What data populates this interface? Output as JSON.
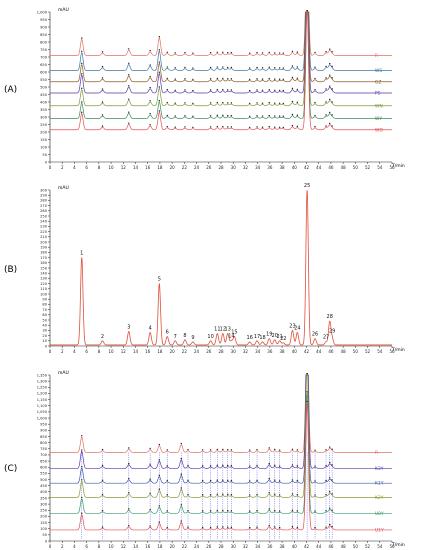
{
  "chart_data": [
    {
      "type": "line",
      "panel_label": "(A)",
      "y_unit": "mAU",
      "x_unit": "T/min",
      "xlim": [
        0,
        56
      ],
      "ylim": [
        0,
        1000
      ],
      "x_ticks": [
        0,
        2,
        4,
        6,
        8,
        10,
        12,
        14,
        16,
        18,
        20,
        22,
        24,
        26,
        28,
        30,
        32,
        34,
        36,
        38,
        40,
        42,
        44,
        46,
        48,
        50,
        52,
        54,
        56
      ],
      "y_ticks": [
        0,
        50,
        100,
        150,
        200,
        250,
        300,
        350,
        400,
        450,
        500,
        550,
        600,
        650,
        700,
        750,
        800,
        850,
        900,
        950,
        1000
      ],
      "trace_offsets": [
        710,
        610,
        535,
        460,
        375,
        290,
        215
      ],
      "series": [
        {
          "name": "R",
          "color": "#e07060",
          "peak_scale": 0.9
        },
        {
          "name": "WS",
          "color": "#3a78a8",
          "peak_scale": 1.0
        },
        {
          "name": "GZ",
          "color": "#8a5a2a",
          "peak_scale": 0.95
        },
        {
          "name": "PS",
          "color": "#5a3aa8",
          "peak_scale": 1.0
        },
        {
          "name": "WN",
          "color": "#7a9a3a",
          "peak_scale": 0.9
        },
        {
          "name": "WY",
          "color": "#3a8a5a",
          "peak_scale": 0.85
        },
        {
          "name": "WD",
          "color": "#e05050",
          "peak_scale": 0.9
        }
      ],
      "peaks": [
        {
          "t": 5.2,
          "h": 120
        },
        {
          "t": 8.6,
          "h": 18
        },
        {
          "t": 12.9,
          "h": 40
        },
        {
          "t": 16.4,
          "h": 28
        },
        {
          "t": 17.9,
          "h": 130
        },
        {
          "t": 19.2,
          "h": 15
        },
        {
          "t": 20.5,
          "h": 10
        },
        {
          "t": 22.1,
          "h": 12
        },
        {
          "t": 23.4,
          "h": 8
        },
        {
          "t": 26.3,
          "h": 12
        },
        {
          "t": 27.4,
          "h": 15
        },
        {
          "t": 28.3,
          "h": 15
        },
        {
          "t": 29.1,
          "h": 12
        },
        {
          "t": 29.7,
          "h": 12
        },
        {
          "t": 32.7,
          "h": 8
        },
        {
          "t": 33.9,
          "h": 12
        },
        {
          "t": 34.8,
          "h": 10
        },
        {
          "t": 35.9,
          "h": 14
        },
        {
          "t": 36.8,
          "h": 10
        },
        {
          "t": 37.6,
          "h": 9
        },
        {
          "t": 38.2,
          "h": 8
        },
        {
          "t": 39.7,
          "h": 22
        },
        {
          "t": 40.5,
          "h": 16
        },
        {
          "t": 42.1,
          "h": 900
        },
        {
          "t": 43.4,
          "h": 14
        },
        {
          "t": 45.2,
          "h": 18
        },
        {
          "t": 45.8,
          "h": 35
        },
        {
          "t": 46.2,
          "h": 12
        }
      ],
      "marker_positions": [
        5.2,
        8.6,
        12.9,
        16.4,
        17.9,
        19.2,
        20.5,
        22.1,
        23.4,
        26.3,
        27.4,
        28.3,
        29.1,
        29.7,
        32.7,
        33.9,
        34.8,
        35.9,
        36.8,
        37.6,
        38.2,
        39.7,
        40.5,
        42.1,
        43.4,
        45.2,
        45.8,
        46.2
      ]
    },
    {
      "type": "line",
      "panel_label": "(B)",
      "y_unit": "mAU",
      "x_unit": "T/min",
      "xlim": [
        0,
        56
      ],
      "ylim": [
        0,
        300
      ],
      "x_ticks": [
        0,
        2,
        4,
        6,
        8,
        10,
        12,
        14,
        16,
        18,
        20,
        22,
        24,
        26,
        28,
        30,
        32,
        34,
        36,
        38,
        40,
        42,
        44,
        46,
        48,
        50,
        52,
        54,
        56
      ],
      "y_ticks": [
        0,
        10,
        20,
        30,
        40,
        50,
        60,
        70,
        80,
        90,
        100,
        110,
        120,
        130,
        140,
        150,
        160,
        170,
        180,
        190,
        200,
        210,
        220,
        230,
        240,
        250,
        260,
        270,
        280,
        290,
        300
      ],
      "series": [
        {
          "name": "",
          "color": "#e0503a"
        }
      ],
      "peaks": [
        {
          "label": "1",
          "t": 5.2,
          "h": 168
        },
        {
          "label": "2",
          "t": 8.6,
          "h": 8
        },
        {
          "label": "3",
          "t": 12.9,
          "h": 26
        },
        {
          "label": "4",
          "t": 16.4,
          "h": 24
        },
        {
          "label": "5",
          "t": 17.9,
          "h": 118
        },
        {
          "label": "6",
          "t": 19.2,
          "h": 16
        },
        {
          "label": "7",
          "t": 20.5,
          "h": 8
        },
        {
          "label": "8",
          "t": 22.1,
          "h": 10
        },
        {
          "label": "9",
          "t": 23.4,
          "h": 6
        },
        {
          "label": "10",
          "t": 26.3,
          "h": 8
        },
        {
          "label": "11",
          "t": 27.4,
          "h": 22
        },
        {
          "label": "12",
          "t": 28.3,
          "h": 22
        },
        {
          "label": "13",
          "t": 29.1,
          "h": 22
        },
        {
          "label": "14",
          "t": 29.7,
          "h": 8
        },
        {
          "label": "15",
          "t": 30.2,
          "h": 16
        },
        {
          "label": "16",
          "t": 32.7,
          "h": 6
        },
        {
          "label": "17",
          "t": 33.9,
          "h": 8
        },
        {
          "label": "18",
          "t": 34.8,
          "h": 6
        },
        {
          "label": "19",
          "t": 35.9,
          "h": 12
        },
        {
          "label": "20",
          "t": 36.8,
          "h": 10
        },
        {
          "label": "21",
          "t": 37.6,
          "h": 8
        },
        {
          "label": "22",
          "t": 38.2,
          "h": 4
        },
        {
          "label": "23",
          "t": 39.7,
          "h": 28
        },
        {
          "label": "24",
          "t": 40.5,
          "h": 24
        },
        {
          "label": "25",
          "t": 42.1,
          "h": 298
        },
        {
          "label": "26",
          "t": 43.4,
          "h": 12
        },
        {
          "label": "27",
          "t": 45.2,
          "h": 6
        },
        {
          "label": "28",
          "t": 45.8,
          "h": 44
        },
        {
          "label": "29",
          "t": 46.2,
          "h": 12
        }
      ]
    },
    {
      "type": "line",
      "panel_label": "(C)",
      "y_unit": "mAU",
      "x_unit": "T/min",
      "xlim": [
        0,
        56
      ],
      "ylim": [
        0,
        1350
      ],
      "x_ticks": [
        0,
        2,
        4,
        6,
        8,
        10,
        12,
        14,
        16,
        18,
        20,
        22,
        24,
        26,
        28,
        30,
        32,
        34,
        36,
        38,
        40,
        42,
        44,
        46,
        48,
        50,
        52,
        54,
        56
      ],
      "y_ticks": [
        0,
        50,
        100,
        150,
        200,
        250,
        300,
        350,
        400,
        450,
        500,
        550,
        600,
        650,
        700,
        750,
        800,
        850,
        900,
        950,
        1000,
        1050,
        1100,
        1150,
        1200,
        1250,
        1300,
        1350
      ],
      "trace_offsets": [
        720,
        590,
        470,
        355,
        225,
        90
      ],
      "series": [
        {
          "name": "R",
          "color": "#e07060",
          "peak_scale": 0.9
        },
        {
          "name": "K3Y",
          "color": "#5a3aa8",
          "peak_scale": 1.0
        },
        {
          "name": "K1Y",
          "color": "#3a5aa8",
          "peak_scale": 0.9
        },
        {
          "name": "K2Y",
          "color": "#8a9a3a",
          "peak_scale": 0.95
        },
        {
          "name": "U8Y",
          "color": "#3a9a6a",
          "peak_scale": 0.85
        },
        {
          "name": "U1Y",
          "color": "#e05050",
          "peak_scale": 0.9
        }
      ],
      "peaks": [
        {
          "t": 5.2,
          "h": 140
        },
        {
          "t": 8.6,
          "h": 15
        },
        {
          "t": 12.9,
          "h": 30
        },
        {
          "t": 16.4,
          "h": 25
        },
        {
          "t": 17.9,
          "h": 60
        },
        {
          "t": 19.2,
          "h": 12
        },
        {
          "t": 21.5,
          "h": 70
        },
        {
          "t": 22.6,
          "h": 14
        },
        {
          "t": 25.0,
          "h": 12
        },
        {
          "t": 26.3,
          "h": 12
        },
        {
          "t": 27.4,
          "h": 16
        },
        {
          "t": 28.3,
          "h": 16
        },
        {
          "t": 29.1,
          "h": 14
        },
        {
          "t": 29.7,
          "h": 12
        },
        {
          "t": 32.7,
          "h": 10
        },
        {
          "t": 33.9,
          "h": 14
        },
        {
          "t": 35.9,
          "h": 30
        },
        {
          "t": 36.8,
          "h": 16
        },
        {
          "t": 37.6,
          "h": 10
        },
        {
          "t": 39.7,
          "h": 18
        },
        {
          "t": 40.5,
          "h": 12
        },
        {
          "t": 42.1,
          "h": 1150
        },
        {
          "t": 43.4,
          "h": 10
        },
        {
          "t": 45.2,
          "h": 12
        },
        {
          "t": 45.8,
          "h": 35
        },
        {
          "t": 46.2,
          "h": 12
        }
      ],
      "marker_positions": [
        5.2,
        8.6,
        12.9,
        16.4,
        17.9,
        19.2,
        21.5,
        22.6,
        25.0,
        26.3,
        27.4,
        28.3,
        29.1,
        29.7,
        32.7,
        33.9,
        35.9,
        36.8,
        37.6,
        39.7,
        40.5,
        42.1,
        43.4,
        45.2,
        45.8,
        46.2
      ],
      "dashed_line_times": [
        5.2,
        8.6,
        12.9,
        16.4,
        17.9,
        19.2,
        21.5,
        22.6,
        25.0,
        26.3,
        27.4,
        28.3,
        29.1,
        29.7,
        32.7,
        33.9,
        35.9,
        36.8,
        37.6,
        39.7,
        40.5,
        42.1,
        43.4,
        45.2,
        45.8,
        46.2
      ],
      "dashed_line_color": "#3a3ae0"
    }
  ]
}
